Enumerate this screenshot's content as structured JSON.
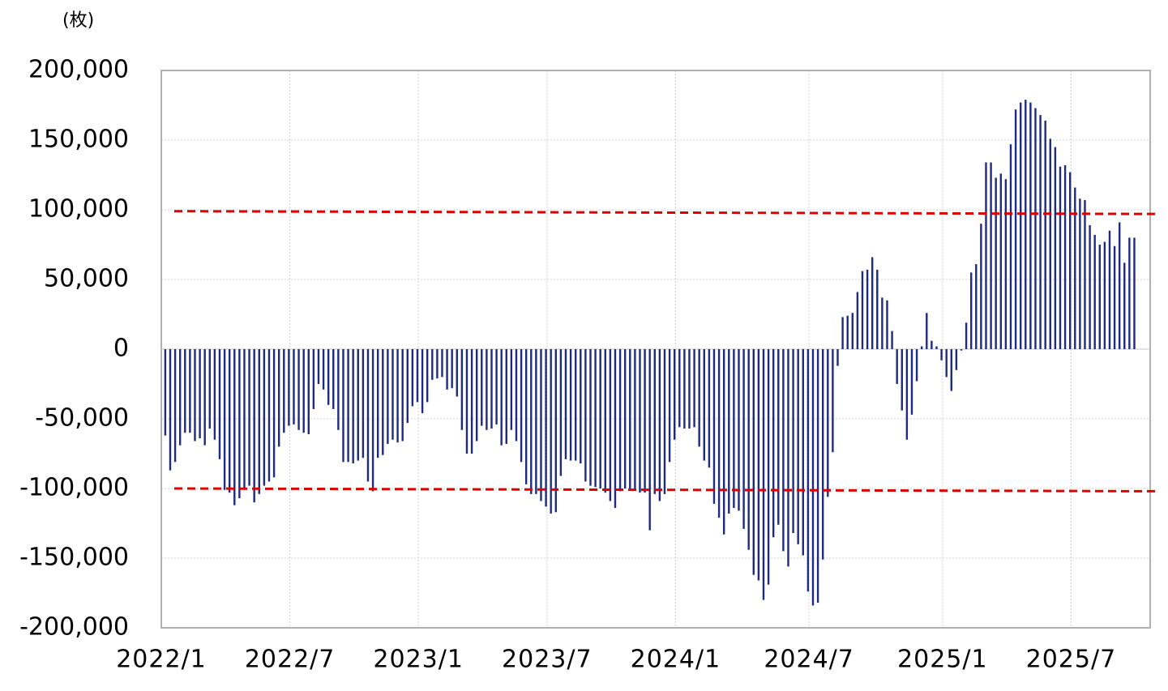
{
  "chart_data": {
    "type": "bar",
    "y_label": "(枚)",
    "color": "#1f2a80",
    "negative_tick_color": "#e00000",
    "grid": true,
    "categories": [
      "2022/1",
      null,
      null,
      null,
      null,
      null,
      null,
      null,
      null,
      null,
      null,
      null,
      null,
      null,
      null,
      null,
      null,
      null,
      null,
      null,
      null,
      null,
      null,
      null,
      null,
      null,
      "2022/7",
      null,
      null,
      null,
      null,
      null,
      null,
      null,
      null,
      null,
      null,
      null,
      null,
      null,
      null,
      null,
      null,
      null,
      null,
      null,
      null,
      null,
      null,
      null,
      null,
      null,
      "2023/1",
      null,
      null,
      null,
      null,
      null,
      null,
      null,
      null,
      null,
      null,
      null,
      null,
      null,
      null,
      null,
      null,
      null,
      null,
      null,
      null,
      null,
      null,
      null,
      null,
      null,
      "2023/7",
      null,
      null,
      null,
      null,
      null,
      null,
      null,
      null,
      null,
      null,
      null,
      null,
      null,
      null,
      null,
      null,
      null,
      null,
      null,
      null,
      null,
      null,
      null,
      null,
      null,
      "2024/1",
      null,
      null,
      null,
      null,
      null,
      null,
      null,
      null,
      null,
      null,
      null,
      null,
      null,
      null,
      null,
      null,
      null,
      null,
      null,
      null,
      null,
      null,
      null,
      null,
      null,
      null,
      "2024/7",
      null,
      null,
      null,
      null,
      null,
      null,
      null,
      null,
      null,
      null,
      null,
      null,
      null,
      null,
      null,
      null,
      null,
      null,
      null,
      null,
      null,
      null,
      null,
      null,
      null,
      null,
      "2025/1",
      null,
      null,
      null,
      null,
      null,
      null,
      null,
      null,
      null,
      null,
      null,
      null,
      null,
      null,
      null,
      null,
      null,
      null,
      null,
      null,
      null,
      null,
      null,
      null,
      null,
      "2025/7",
      null,
      null,
      null,
      null,
      null,
      null,
      null,
      null,
      null,
      null,
      null,
      null
    ],
    "values": [
      -62000,
      -87000,
      -81000,
      -69000,
      -60000,
      -60000,
      -66000,
      -64000,
      -69000,
      -57000,
      -65000,
      -79000,
      -101000,
      -103000,
      -112000,
      -107000,
      -101000,
      -98000,
      -110000,
      -104000,
      -98000,
      -95000,
      -92000,
      -70000,
      -60000,
      -55000,
      -54000,
      -58000,
      -60000,
      -61000,
      -43000,
      -25000,
      -29000,
      -40000,
      -43000,
      -58000,
      -81000,
      -81000,
      -82000,
      -80000,
      -78000,
      -95000,
      -102000,
      -78000,
      -76000,
      -68000,
      -65000,
      -67000,
      -66000,
      -53000,
      -41000,
      -38000,
      -46000,
      -38000,
      -22000,
      -21000,
      -20000,
      -29000,
      -28000,
      -34000,
      -58000,
      -75000,
      -75000,
      -66000,
      -55000,
      -58000,
      -57000,
      -54000,
      -69000,
      -68000,
      -58000,
      -66000,
      -81000,
      -97000,
      -104000,
      -104000,
      -109000,
      -113000,
      -118000,
      -117000,
      -91000,
      -79000,
      -80000,
      -80000,
      -82000,
      -95000,
      -98000,
      -99000,
      -100000,
      -103000,
      -109000,
      -114000,
      -102000,
      -100000,
      -100000,
      -101000,
      -103000,
      -103000,
      -130000,
      -104000,
      -109000,
      -104000,
      -81000,
      -65000,
      -56000,
      -57000,
      -57000,
      -56000,
      -70000,
      -80000,
      -85000,
      -111000,
      -121000,
      -133000,
      -118000,
      -114000,
      -116000,
      -129000,
      -144000,
      -162000,
      -166000,
      -180000,
      -169000,
      -135000,
      -126000,
      -145000,
      -156000,
      -132000,
      -140000,
      -148000,
      -174000,
      -184000,
      -182000,
      -151000,
      -106000,
      -74000,
      -12000,
      23000,
      24000,
      26000,
      41000,
      56000,
      57000,
      66000,
      57000,
      37000,
      35000,
      13000,
      -25000,
      -44000,
      -65000,
      -47000,
      -23000,
      2000,
      26000,
      6000,
      2000,
      -8000,
      -20000,
      -30000,
      -15000,
      -1000,
      19000,
      55000,
      61000,
      90000,
      134000,
      134000,
      123000,
      126000,
      122000,
      147000,
      172000,
      177000,
      179000,
      177000,
      173000,
      168000,
      164000,
      151000,
      145000,
      131000,
      132000,
      127000,
      116000,
      108000,
      107000,
      89000,
      82000,
      75000,
      77000,
      85000,
      74000,
      91000,
      62000,
      80000,
      80000
    ],
    "ylim": [
      -200000,
      200000
    ],
    "yticks": [
      {
        "value": -200000,
        "label": "-200,000"
      },
      {
        "value": -150000,
        "label": "-150,000"
      },
      {
        "value": -100000,
        "label": "-100,000"
      },
      {
        "value": -50000,
        "label": "-50,000"
      },
      0,
      {
        "value": 50000,
        "label": "50,000"
      },
      {
        "value": 100000,
        "label": "100,000"
      },
      {
        "value": 150000,
        "label": "150,000"
      },
      {
        "value": 200000,
        "label": "200,000"
      }
    ],
    "trend_lines": [
      {
        "start": 99000,
        "end": 97000,
        "color": "#e00000"
      },
      {
        "start": -100000,
        "end": -102000,
        "color": "#e00000"
      }
    ]
  }
}
